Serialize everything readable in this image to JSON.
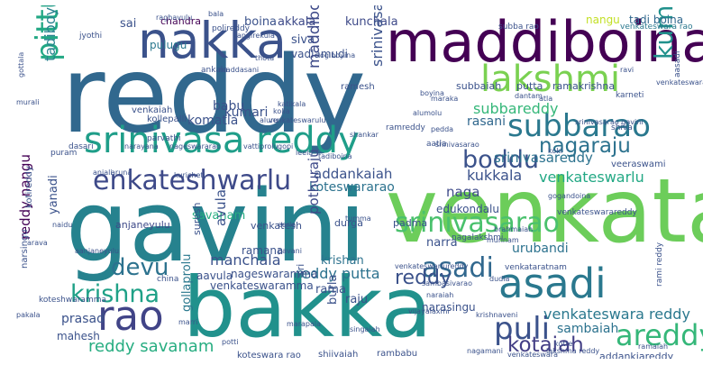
{
  "words": [
    {
      "text": "reddy",
      "color": "#31688e"
    },
    {
      "text": "gavini",
      "color": "#26828e"
    },
    {
      "text": "bakka",
      "color": "#21918c"
    },
    {
      "text": "venkata",
      "color": "#6ccd5a"
    },
    {
      "text": "maddiboina",
      "color": "#440154"
    },
    {
      "text": "nakka",
      "color": "#3b528b"
    },
    {
      "text": "lakshmi",
      "color": "#7ad151"
    },
    {
      "text": "subbarao",
      "color": "#2a788e"
    },
    {
      "text": "srinivasa reddy",
      "color": "#1f9e89"
    },
    {
      "text": "srinivasarao",
      "color": "#4ac16d"
    },
    {
      "text": "asadi",
      "color": "#2a788e"
    },
    {
      "text": "enkateshwarlu",
      "color": "#3e4a89"
    },
    {
      "text": "boddu",
      "color": "#3b528b"
    },
    {
      "text": "pittu",
      "color": "#22a884"
    },
    {
      "text": "kumar",
      "color": "#21918c"
    },
    {
      "text": "nagaraju",
      "color": "#2c728e"
    },
    {
      "text": "rao",
      "color": "#414487"
    },
    {
      "text": "puli",
      "color": "#3b528b"
    },
    {
      "text": "areddy",
      "color": "#35b779"
    },
    {
      "text": "krishna",
      "color": "#1fa187"
    },
    {
      "text": "devu",
      "color": "#2c728e"
    },
    {
      "text": "asadi",
      "color": "#31688e"
    },
    {
      "text": "reddy",
      "color": "#3b528b"
    },
    {
      "text": "kotaiah",
      "color": "#433e85"
    },
    {
      "text": "reddy savanam",
      "color": "#27ad81"
    },
    {
      "text": "venkateswara reddy",
      "color": "#2a788e"
    },
    {
      "text": "tadiboyina",
      "color": "#26828e"
    },
    {
      "text": "sai",
      "color": "#3b528b"
    },
    {
      "text": "chandra",
      "color": "#440154"
    },
    {
      "text": "boina",
      "color": "#3b528b"
    },
    {
      "text": "akkala",
      "color": "#3e4a89"
    },
    {
      "text": "kunchala",
      "color": "#3e4a89"
    },
    {
      "text": "nangu",
      "color": "#c2df23"
    },
    {
      "text": "tadi boina",
      "color": "#31688e"
    },
    {
      "text": "venkateswara rao",
      "color": "#2a788e"
    },
    {
      "text": "siva",
      "color": "#3b528b"
    },
    {
      "text": "pulugu",
      "color": "#2a788e"
    },
    {
      "text": "vadlamudi",
      "color": "#3b528b"
    },
    {
      "text": "kumari",
      "color": "#3b528b"
    },
    {
      "text": "maddiboyina",
      "color": "#3e4a89"
    },
    {
      "text": "srinivasa rao",
      "color": "#3b528b"
    },
    {
      "text": "babu",
      "color": "#3b528b"
    },
    {
      "text": "komatla",
      "color": "#3b528b"
    },
    {
      "text": "subbareddy",
      "color": "#35b779"
    },
    {
      "text": "rasani",
      "color": "#31688e"
    },
    {
      "text": "srinivasareddy",
      "color": "#2c728e"
    },
    {
      "text": "venkateswarlu",
      "color": "#22a884"
    },
    {
      "text": "kukkala",
      "color": "#3b528b"
    },
    {
      "text": "naga",
      "color": "#3e4a89"
    },
    {
      "text": "addankaiah",
      "color": "#3b528b"
    },
    {
      "text": "koteswararao",
      "color": "#2c728e"
    },
    {
      "text": "edukondalu",
      "color": "#3b528b"
    },
    {
      "text": "savanam",
      "color": "#27ad81"
    },
    {
      "text": "anjaneyulu",
      "color": "#3e4a89"
    },
    {
      "text": "venkatesh",
      "color": "#3b528b"
    },
    {
      "text": "avula",
      "color": "#3b528b"
    },
    {
      "text": "pothuraju",
      "color": "#3e4a89"
    },
    {
      "text": "durga",
      "color": "#3b528b"
    },
    {
      "text": "padma",
      "color": "#3b528b"
    },
    {
      "text": "reddy nangu",
      "color": "#440154"
    },
    {
      "text": "yanadi",
      "color": "#3b528b"
    },
    {
      "text": "narsingu",
      "color": "#3b528b"
    },
    {
      "text": "manchala",
      "color": "#3b528b"
    },
    {
      "text": "reddy putta",
      "color": "#2c728e"
    },
    {
      "text": "krishan",
      "color": "#2c728e"
    },
    {
      "text": "urubandi",
      "color": "#2c728e"
    },
    {
      "text": "narra",
      "color": "#3b528b"
    },
    {
      "text": "rama",
      "color": "#3b528b"
    },
    {
      "text": "raju",
      "color": "#3b528b"
    },
    {
      "text": "burla",
      "color": "#3b528b"
    },
    {
      "text": "nageswaramma",
      "color": "#3b528b"
    },
    {
      "text": "venkateswaramma",
      "color": "#3b528b"
    },
    {
      "text": "ramana",
      "color": "#3b528b"
    },
    {
      "text": "aavula",
      "color": "#3b528b"
    },
    {
      "text": "gollaprolu",
      "color": "#2a788e"
    },
    {
      "text": "prasad",
      "color": "#3b528b"
    },
    {
      "text": "mahesh",
      "color": "#3b528b"
    },
    {
      "text": "narasingu",
      "color": "#3b528b"
    },
    {
      "text": "sambaiah",
      "color": "#2c728e"
    },
    {
      "text": "addankiareddy",
      "color": "#3b528b"
    },
    {
      "text": "koteswara rao",
      "color": "#3b528b"
    },
    {
      "text": "shiivaiah",
      "color": "#3b528b"
    },
    {
      "text": "rambabu",
      "color": "#3b528b"
    },
    {
      "text": "ramesh",
      "color": "#3b528b"
    },
    {
      "text": "subbaiah",
      "color": "#3b528b"
    },
    {
      "text": "putta",
      "color": "#3b528b"
    },
    {
      "text": "ramakrishna",
      "color": "#3b528b"
    },
    {
      "text": "veeraswami",
      "color": "#3b528b"
    },
    {
      "text": "kotireddy",
      "color": "#3b528b"
    },
    {
      "text": "puram",
      "color": "#3b528b"
    },
    {
      "text": "kollepalli",
      "color": "#3b528b"
    },
    {
      "text": "venkaiah",
      "color": "#3b528b"
    },
    {
      "text": "parvathi",
      "color": "#3b528b"
    },
    {
      "text": "dasari",
      "color": "#3b528b"
    },
    {
      "text": "raghavulu",
      "color": "#3b528b"
    },
    {
      "text": "bala",
      "color": "#3b528b"
    },
    {
      "text": "polireddy",
      "color": "#3b528b"
    },
    {
      "text": "subba rao",
      "color": "#3b528b"
    },
    {
      "text": "ogiboyina",
      "color": "#3b528b"
    },
    {
      "text": "angirekula",
      "color": "#3b528b"
    },
    {
      "text": "jyothi",
      "color": "#3b528b"
    },
    {
      "text": "thota",
      "color": "#3b528b"
    },
    {
      "text": "ankala",
      "color": "#3b528b"
    },
    {
      "text": "maddasani",
      "color": "#3b528b"
    },
    {
      "text": "karneti",
      "color": "#3b528b"
    },
    {
      "text": "suresh",
      "color": "#3b528b"
    },
    {
      "text": "sri",
      "color": "#3b528b"
    },
    {
      "text": "china",
      "color": "#3b528b"
    },
    {
      "text": "koteshwaramma",
      "color": "#3b528b"
    },
    {
      "text": "pakala",
      "color": "#3b528b"
    },
    {
      "text": "aatla",
      "color": "#3b528b"
    },
    {
      "text": "munnam",
      "color": "#3b528b"
    },
    {
      "text": "nagalakshmi",
      "color": "#3b528b"
    },
    {
      "text": "venkateswarareddy",
      "color": "#3b528b"
    },
    {
      "text": "rami reddy",
      "color": "#3b528b"
    },
    {
      "text": "venkataratnam",
      "color": "#3b528b"
    },
    {
      "text": "kotte",
      "color": "#3b528b"
    },
    {
      "text": "lakshma reddy",
      "color": "#3b528b"
    },
    {
      "text": "mani",
      "color": "#3b528b"
    },
    {
      "text": "potti",
      "color": "#3b528b"
    },
    {
      "text": "marapala",
      "color": "#3b528b"
    },
    {
      "text": "vijayalaxmi",
      "color": "#3b528b"
    },
    {
      "text": "sambasivarao",
      "color": "#3b528b"
    },
    {
      "text": "ravi",
      "color": "#3b528b"
    },
    {
      "text": "gottala",
      "color": "#3b528b"
    },
    {
      "text": "murali",
      "color": "#3b528b"
    },
    {
      "text": "katikala",
      "color": "#3b528b"
    },
    {
      "text": "kolla",
      "color": "#3b528b"
    },
    {
      "text": "venkateswarulu",
      "color": "#3b528b"
    },
    {
      "text": "aluru",
      "color": "#3b528b"
    },
    {
      "text": "alumolu",
      "color": "#3b528b"
    },
    {
      "text": "boyina",
      "color": "#3b528b"
    },
    {
      "text": "dantam",
      "color": "#3b528b"
    },
    {
      "text": "atla",
      "color": "#3b528b"
    },
    {
      "text": "maraka",
      "color": "#3b528b"
    },
    {
      "text": "venkateswaramma",
      "color": "#3b528b"
    },
    {
      "text": "srinivasarao gavini",
      "color": "#3b528b"
    },
    {
      "text": "aasadi",
      "color": "#3b528b"
    },
    {
      "text": "shiva",
      "color": "#3b528b"
    },
    {
      "text": "ramreddy",
      "color": "#3b528b"
    },
    {
      "text": "pedda",
      "color": "#3b528b"
    },
    {
      "text": "narayana",
      "color": "#3b528b"
    },
    {
      "text": "nageswararao",
      "color": "#3b528b"
    },
    {
      "text": "vattiprolu",
      "color": "#3b528b"
    },
    {
      "text": "gopi",
      "color": "#3b528b"
    },
    {
      "text": "leela",
      "color": "#3b528b"
    },
    {
      "text": "tadiboina",
      "color": "#3b528b"
    },
    {
      "text": "srinivasarao",
      "color": "#3b528b"
    },
    {
      "text": "koki",
      "color": "#3b528b"
    },
    {
      "text": "anjali",
      "color": "#3b528b"
    },
    {
      "text": "aruna",
      "color": "#3b528b"
    },
    {
      "text": "kuricheti",
      "color": "#3b528b"
    },
    {
      "text": "eerla",
      "color": "#3b528b"
    },
    {
      "text": "gogandoina",
      "color": "#3b528b"
    },
    {
      "text": "naidu",
      "color": "#3b528b"
    },
    {
      "text": "arava",
      "color": "#3b528b"
    },
    {
      "text": "aanjaneyulu",
      "color": "#3b528b"
    },
    {
      "text": "pavani",
      "color": "#3b528b"
    },
    {
      "text": "tumma",
      "color": "#3b528b"
    },
    {
      "text": "brahmaiah",
      "color": "#3b528b"
    },
    {
      "text": "venkateswarlureddy",
      "color": "#3b528b"
    },
    {
      "text": "dudla",
      "color": "#3b528b"
    },
    {
      "text": "naraiah",
      "color": "#3b528b"
    },
    {
      "text": "krishnaveni",
      "color": "#3b528b"
    },
    {
      "text": "marri",
      "color": "#3b528b"
    },
    {
      "text": "singaiah",
      "color": "#3b528b"
    },
    {
      "text": "nagamani",
      "color": "#3b528b"
    },
    {
      "text": "venkateswara",
      "color": "#3b528b"
    },
    {
      "text": "venkateshwarlu",
      "color": "#3b528b"
    },
    {
      "text": "ramaiah",
      "color": "#3b528b"
    },
    {
      "text": "shankar",
      "color": "#3b528b"
    }
  ]
}
